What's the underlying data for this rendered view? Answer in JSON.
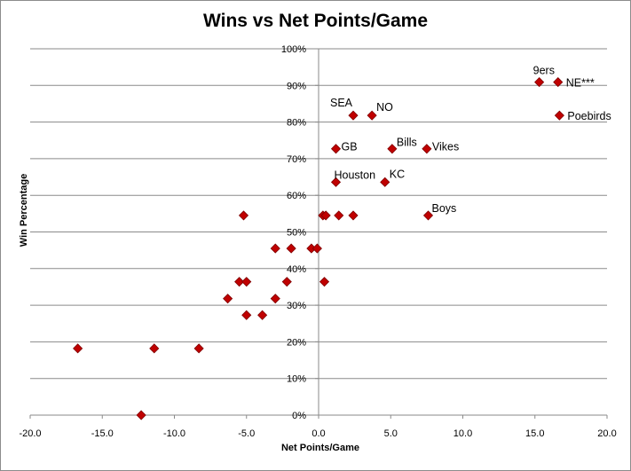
{
  "chart_data": {
    "type": "scatter",
    "title": "Wins vs Net Points/Game",
    "xlabel": "Net Points/Game",
    "ylabel": "Win Percentage",
    "xlim": [
      -20,
      20
    ],
    "ylim": [
      0,
      100
    ],
    "x_ticks": [
      "-20.0",
      "-15.0",
      "-10.0",
      "-5.0",
      "0.0",
      "5.0",
      "10.0",
      "15.0",
      "20.0"
    ],
    "y_ticks": [
      "0%",
      "10%",
      "20%",
      "30%",
      "40%",
      "50%",
      "60%",
      "70%",
      "80%",
      "90%",
      "100%"
    ],
    "grid": "horizontal",
    "marker_color": "#c00000",
    "marker_edge": "#7f0000",
    "points": [
      {
        "x": 15.3,
        "y": 90.9,
        "label": "9ers"
      },
      {
        "x": 16.6,
        "y": 90.9,
        "label": "NE***"
      },
      {
        "x": 2.4,
        "y": 81.8,
        "label": "SEA"
      },
      {
        "x": 3.7,
        "y": 81.8,
        "label": "NO"
      },
      {
        "x": 16.7,
        "y": 81.8,
        "label": "Poebirds"
      },
      {
        "x": 1.2,
        "y": 72.7,
        "label": "GB"
      },
      {
        "x": 5.1,
        "y": 72.7,
        "label": "Bills"
      },
      {
        "x": 7.5,
        "y": 72.7,
        "label": "Vikes"
      },
      {
        "x": 1.2,
        "y": 63.6,
        "label": "Houston"
      },
      {
        "x": 4.6,
        "y": 63.6,
        "label": "KC"
      },
      {
        "x": 7.6,
        "y": 54.5,
        "label": "Boys"
      },
      {
        "x": -5.2,
        "y": 54.5,
        "label": ""
      },
      {
        "x": 0.3,
        "y": 54.5,
        "label": ""
      },
      {
        "x": 0.5,
        "y": 54.5,
        "label": ""
      },
      {
        "x": 1.4,
        "y": 54.5,
        "label": ""
      },
      {
        "x": 2.4,
        "y": 54.5,
        "label": ""
      },
      {
        "x": -3.0,
        "y": 45.5,
        "label": ""
      },
      {
        "x": -1.9,
        "y": 45.5,
        "label": ""
      },
      {
        "x": -0.5,
        "y": 45.5,
        "label": ""
      },
      {
        "x": -0.1,
        "y": 45.5,
        "label": ""
      },
      {
        "x": -5.5,
        "y": 36.4,
        "label": ""
      },
      {
        "x": -5.0,
        "y": 36.4,
        "label": ""
      },
      {
        "x": -2.2,
        "y": 36.4,
        "label": ""
      },
      {
        "x": 0.4,
        "y": 36.4,
        "label": ""
      },
      {
        "x": -6.3,
        "y": 31.8,
        "label": ""
      },
      {
        "x": -3.0,
        "y": 31.8,
        "label": ""
      },
      {
        "x": -5.0,
        "y": 27.3,
        "label": ""
      },
      {
        "x": -3.9,
        "y": 27.3,
        "label": ""
      },
      {
        "x": -16.7,
        "y": 18.2,
        "label": ""
      },
      {
        "x": -11.4,
        "y": 18.2,
        "label": ""
      },
      {
        "x": -8.3,
        "y": 18.2,
        "label": ""
      },
      {
        "x": -12.3,
        "y": 0.0,
        "label": ""
      }
    ]
  }
}
